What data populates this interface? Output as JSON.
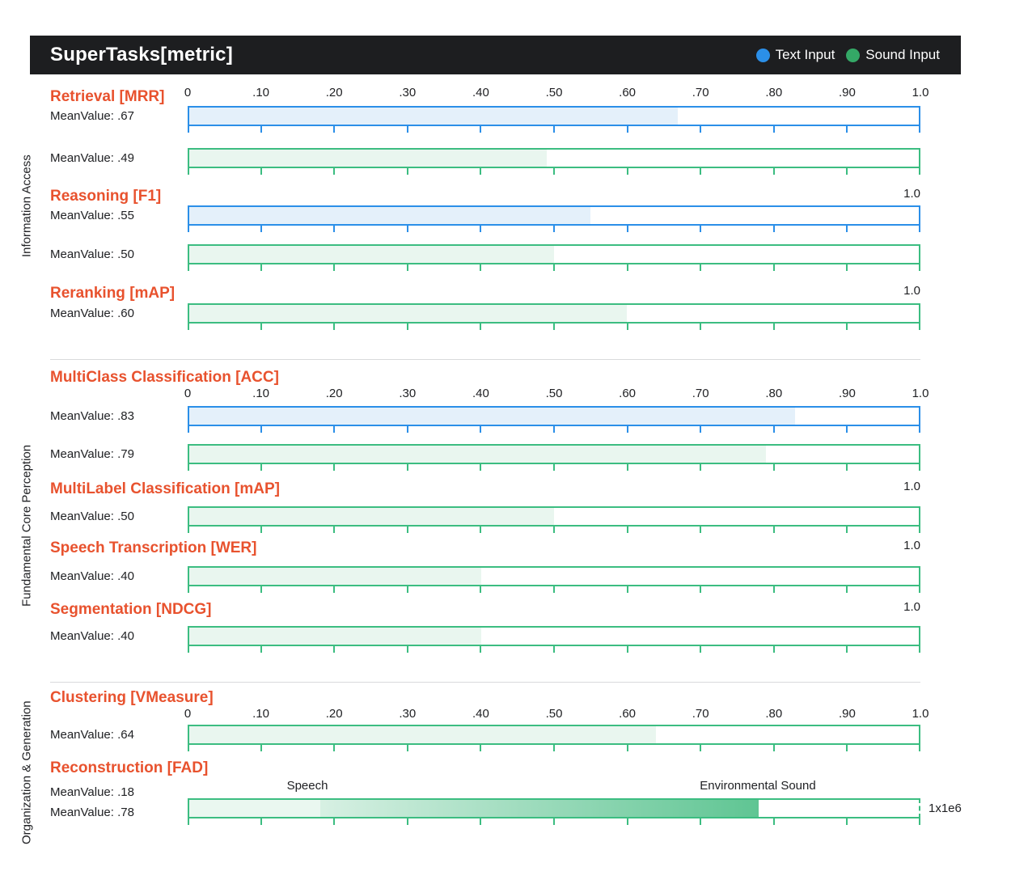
{
  "chart_data": {
    "type": "bar",
    "title": "SuperTasks[metric]",
    "legend": [
      {
        "label": "Text Input",
        "color": "#2b8fe8"
      },
      {
        "label": "Sound Input",
        "color": "#34a866"
      }
    ],
    "axis": {
      "range": [
        0,
        1.0
      ],
      "tick_labels": [
        "0",
        ".10",
        ".20",
        ".30",
        ".40",
        ".50",
        ".60",
        ".70",
        ".80",
        ".90",
        "1.0"
      ],
      "max_tick_label": "1.0",
      "grid": false,
      "orientation": "horizontal"
    },
    "groups": [
      {
        "name": "Information Access",
        "tasks": [
          {
            "title": "Retrieval [MRR]",
            "show_axis": true,
            "bars": [
              {
                "series": "Text Input",
                "value": 0.67,
                "display": "MeanValue: .67"
              },
              {
                "series": "Sound Input",
                "value": 0.49,
                "display": "MeanValue: .49"
              }
            ]
          },
          {
            "title": "Reasoning [F1]",
            "max_label": "1.0",
            "bars": [
              {
                "series": "Text Input",
                "value": 0.55,
                "display": "MeanValue: .55"
              },
              {
                "series": "Sound Input",
                "value": 0.5,
                "display": "MeanValue: .50"
              }
            ]
          },
          {
            "title": "Reranking [mAP]",
            "max_label": "1.0",
            "bars": [
              {
                "series": "Sound Input",
                "value": 0.6,
                "display": "MeanValue: .60"
              }
            ]
          }
        ]
      },
      {
        "name": "Fundamental Core Perception",
        "tasks": [
          {
            "title": "MultiClass Classification [ACC]",
            "show_axis": true,
            "bars": [
              {
                "series": "Text Input",
                "value": 0.83,
                "display": "MeanValue: .83"
              },
              {
                "series": "Sound Input",
                "value": 0.79,
                "display": "MeanValue: .79"
              }
            ]
          },
          {
            "title": "MultiLabel Classification [mAP]",
            "max_label": "1.0",
            "bars": [
              {
                "series": "Sound Input",
                "value": 0.5,
                "display": "MeanValue: .50"
              }
            ]
          },
          {
            "title": "Speech Transcription [WER]",
            "max_label": "1.0",
            "bars": [
              {
                "series": "Sound Input",
                "value": 0.4,
                "display": "MeanValue: .40"
              }
            ]
          },
          {
            "title": "Segmentation [NDCG]",
            "max_label": "1.0",
            "bars": [
              {
                "series": "Sound Input",
                "value": 0.4,
                "display": "MeanValue: .40"
              }
            ]
          }
        ]
      },
      {
        "name": "Organization & Generation",
        "tasks": [
          {
            "title": "Clustering [VMeasure]",
            "show_axis": true,
            "bars": [
              {
                "series": "Sound Input",
                "value": 0.64,
                "display": "MeanValue: .64"
              }
            ]
          },
          {
            "title": "Reconstruction [FAD]",
            "scale_label": "1x1e6",
            "bars": [
              {
                "series": "Sound Input",
                "subset": "Speech",
                "value": 0.18,
                "display": "MeanValue: .18"
              },
              {
                "series": "Sound Input",
                "subset": "Environmental Sound",
                "value": 0.78,
                "display": "MeanValue: .78"
              }
            ],
            "annotations": [
              {
                "text": "Speech",
                "position": 0.163
              },
              {
                "text": "Environmental Sound",
                "position": 0.778
              }
            ]
          }
        ]
      }
    ]
  }
}
